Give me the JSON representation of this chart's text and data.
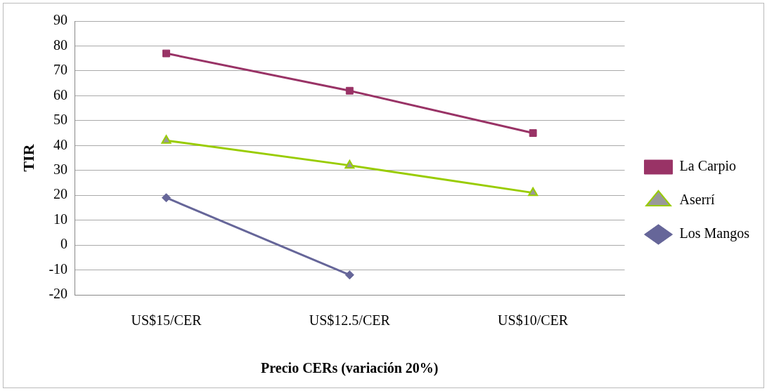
{
  "chart_data": {
    "type": "line",
    "xlabel": "Precio CERs (variación 20%)",
    "ylabel": "TIR",
    "categories": [
      "US$15/CER",
      "US$12.5/CER",
      "US$10/CER"
    ],
    "series": [
      {
        "name": "La Carpio",
        "color": "#993366",
        "marker": "square",
        "values": [
          77,
          62,
          45
        ]
      },
      {
        "name": "Aserrí",
        "color": "#99cc00",
        "marker": "triangle",
        "values": [
          42,
          32,
          21
        ]
      },
      {
        "name": "Los Mangos",
        "color": "#666699",
        "marker": "diamond",
        "values": [
          19,
          -12,
          null
        ]
      }
    ],
    "ylim": [
      -20,
      90
    ],
    "yticks": [
      -20,
      -10,
      0,
      10,
      20,
      30,
      40,
      50,
      60,
      70,
      80,
      90
    ],
    "grid": "y",
    "legend": "right",
    "line_style": "solid"
  }
}
